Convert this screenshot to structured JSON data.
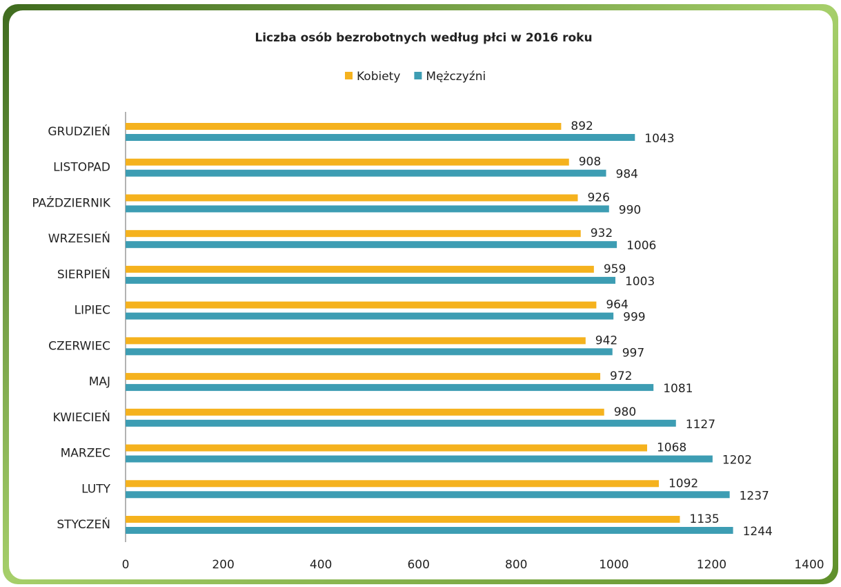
{
  "chart_data": {
    "type": "barh",
    "title": "Liczba osób bezrobotnych według płci w 2016 roku",
    "categories": [
      "STYCZEŃ",
      "LUTY",
      "MARZEC",
      "KWIECIEŃ",
      "MAJ",
      "CZERWIEC",
      "LIPIEC",
      "SIERPIEŃ",
      "WRZESIEŃ",
      "PAŹDZIERNIK",
      "LISTOPAD",
      "GRUDZIEŃ"
    ],
    "series": [
      {
        "name": "Kobiety",
        "color": "#f5b21e",
        "values": [
          1135,
          1092,
          1068,
          980,
          972,
          942,
          964,
          959,
          932,
          926,
          908,
          892
        ]
      },
      {
        "name": "Mężczyźni",
        "color": "#3d9db3",
        "values": [
          1244,
          1237,
          1202,
          1127,
          1081,
          997,
          999,
          1003,
          1006,
          990,
          984,
          1043
        ]
      }
    ],
    "xlim": [
      0,
      1400
    ],
    "xticks": [
      0,
      200,
      400,
      600,
      800,
      1000,
      1200,
      1400
    ],
    "legend": "top",
    "grid": false
  }
}
